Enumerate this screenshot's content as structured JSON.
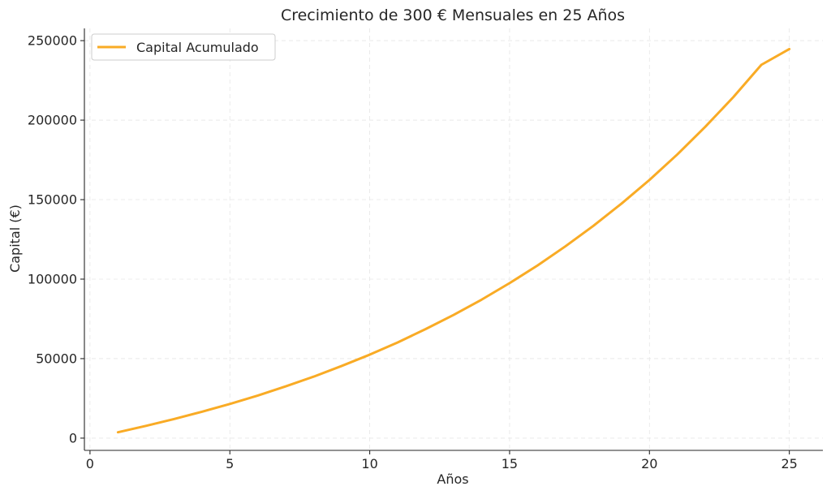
{
  "chart_data": {
    "type": "line",
    "title": "Crecimiento de 300 € Mensuales en 25 Años",
    "xlabel": "Años",
    "ylabel": "Capital (€)",
    "xlim": [
      -0.2,
      26.2
    ],
    "ylim": [
      -7700,
      257700
    ],
    "xticks": [
      0,
      5,
      10,
      15,
      20,
      25
    ],
    "yticks": [
      0,
      50000,
      100000,
      150000,
      200000,
      250000
    ],
    "grid": true,
    "legend_position": "top-left",
    "series": [
      {
        "name": "Capital Acumulado",
        "color": "#f9ab25",
        "x": [
          1,
          2,
          3,
          4,
          5,
          6,
          7,
          8,
          9,
          10,
          11,
          12,
          13,
          14,
          15,
          16,
          17,
          18,
          19,
          20,
          21,
          22,
          23,
          24,
          25
        ],
        "y": [
          3700,
          7700,
          12000,
          16600,
          21500,
          26800,
          32600,
          38700,
          45400,
          52500,
          60200,
          68600,
          77500,
          87100,
          97500,
          108600,
          120700,
          133600,
          147500,
          162400,
          178500,
          195900,
          214500,
          234800,
          244700
        ]
      }
    ]
  }
}
